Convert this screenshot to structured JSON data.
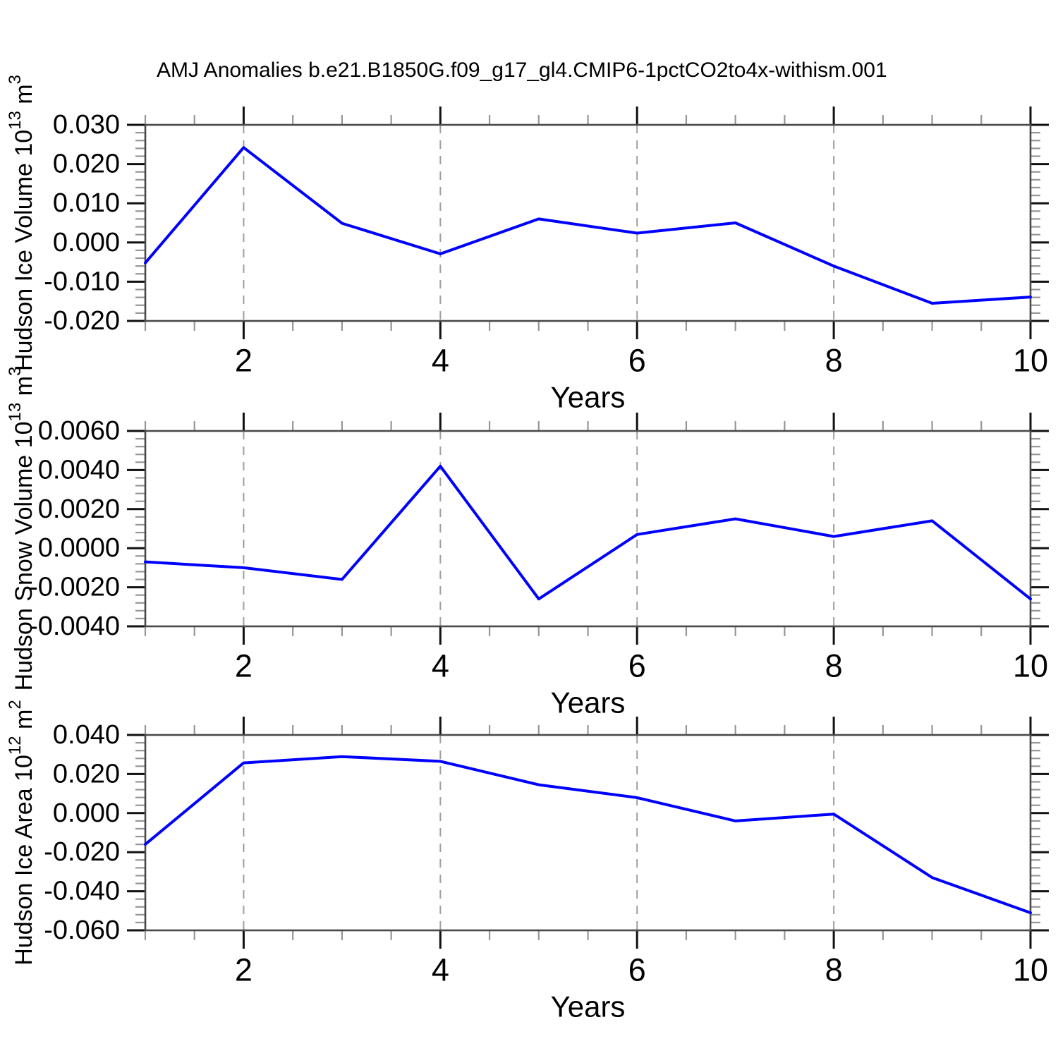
{
  "title": "AMJ Anomalies b.e21.B1850G.f09_g17_gl4.CMIP6-1pctCO2to4x-withism.001",
  "colors": {
    "line": "#0000ff",
    "grid": "#9e9e9e",
    "spine": "#4a4a4a",
    "tick_major": "#111111",
    "tick_minor": "#969696",
    "text": "#000000"
  },
  "chart_data": [
    {
      "type": "line",
      "name": "hudson-ice-volume",
      "ylabel_segments": [
        {
          "t": "Hudson Ice Volume 10"
        },
        {
          "t": "13",
          "sup": true
        },
        {
          "t": " m"
        },
        {
          "t": "3",
          "sup": true
        }
      ],
      "xlabel": "Years",
      "x": [
        1,
        2,
        3,
        4,
        5,
        6,
        7,
        8,
        9,
        10
      ],
      "values": [
        -0.0052,
        0.0242,
        0.0049,
        -0.0029,
        0.006,
        0.0024,
        0.005,
        -0.006,
        -0.0155,
        -0.0139
      ],
      "ylim": [
        -0.02,
        0.03
      ],
      "ytick_values": [
        0.03,
        0.02,
        0.01,
        0.0,
        -0.01,
        -0.02
      ],
      "ytick_labels": [
        "0.030",
        "0.020",
        "0.010",
        "0.000",
        "-0.010",
        "-0.020"
      ],
      "y_minor_step": 0.002,
      "xlim": [
        1,
        10
      ],
      "xtick_values": [
        2,
        4,
        6,
        8,
        10
      ],
      "xtick_labels": [
        "2",
        "4",
        "6",
        "8",
        "10"
      ],
      "x_minor_step": 0.5,
      "grid_x": [
        2,
        4,
        6,
        8
      ],
      "grid_on": true,
      "legend": "none"
    },
    {
      "type": "line",
      "name": "hudson-snow-volume",
      "ylabel_segments": [
        {
          "t": "Hudson Snow Volume 10"
        },
        {
          "t": "13",
          "sup": true
        },
        {
          "t": " m"
        },
        {
          "t": "3",
          "sup": true
        }
      ],
      "xlabel": "Years",
      "x": [
        1,
        2,
        3,
        4,
        5,
        6,
        7,
        8,
        9,
        10
      ],
      "values": [
        -0.0007,
        -0.001,
        -0.0016,
        0.0042,
        -0.0026,
        0.0007,
        0.0015,
        0.0006,
        0.0014,
        -0.0026
      ],
      "ylim": [
        -0.004,
        0.006
      ],
      "ytick_values": [
        0.006,
        0.004,
        0.002,
        0.0,
        -0.002,
        -0.004
      ],
      "ytick_labels": [
        "0.0060",
        "0.0040",
        "0.0020",
        "0.0000",
        "-0.0020",
        "-0.0040"
      ],
      "y_minor_step": 0.0004,
      "xlim": [
        1,
        10
      ],
      "xtick_values": [
        2,
        4,
        6,
        8,
        10
      ],
      "xtick_labels": [
        "2",
        "4",
        "6",
        "8",
        "10"
      ],
      "x_minor_step": 0.5,
      "grid_x": [
        2,
        4,
        6,
        8
      ],
      "grid_on": true,
      "legend": "none"
    },
    {
      "type": "line",
      "name": "hudson-ice-area",
      "ylabel_segments": [
        {
          "t": "Hudson Ice Area 10"
        },
        {
          "t": "12",
          "sup": true
        },
        {
          "t": " m"
        },
        {
          "t": "2",
          "sup": true
        }
      ],
      "xlabel": "Years",
      "x": [
        1,
        2,
        3,
        4,
        5,
        6,
        7,
        8,
        9,
        10
      ],
      "values": [
        -0.016,
        0.0257,
        0.0289,
        0.0265,
        0.0145,
        0.0079,
        -0.004,
        -0.0005,
        -0.033,
        -0.051
      ],
      "ylim": [
        -0.06,
        0.04
      ],
      "ytick_values": [
        0.04,
        0.02,
        0.0,
        -0.02,
        -0.04,
        -0.06
      ],
      "ytick_labels": [
        "0.040",
        "0.020",
        "0.000",
        "-0.020",
        "-0.040",
        "-0.060"
      ],
      "y_minor_step": 0.004,
      "xlim": [
        1,
        10
      ],
      "xtick_values": [
        2,
        4,
        6,
        8,
        10
      ],
      "xtick_labels": [
        "2",
        "4",
        "6",
        "8",
        "10"
      ],
      "x_minor_step": 0.5,
      "grid_x": [
        2,
        4,
        6,
        8
      ],
      "grid_on": true,
      "legend": "none"
    }
  ]
}
